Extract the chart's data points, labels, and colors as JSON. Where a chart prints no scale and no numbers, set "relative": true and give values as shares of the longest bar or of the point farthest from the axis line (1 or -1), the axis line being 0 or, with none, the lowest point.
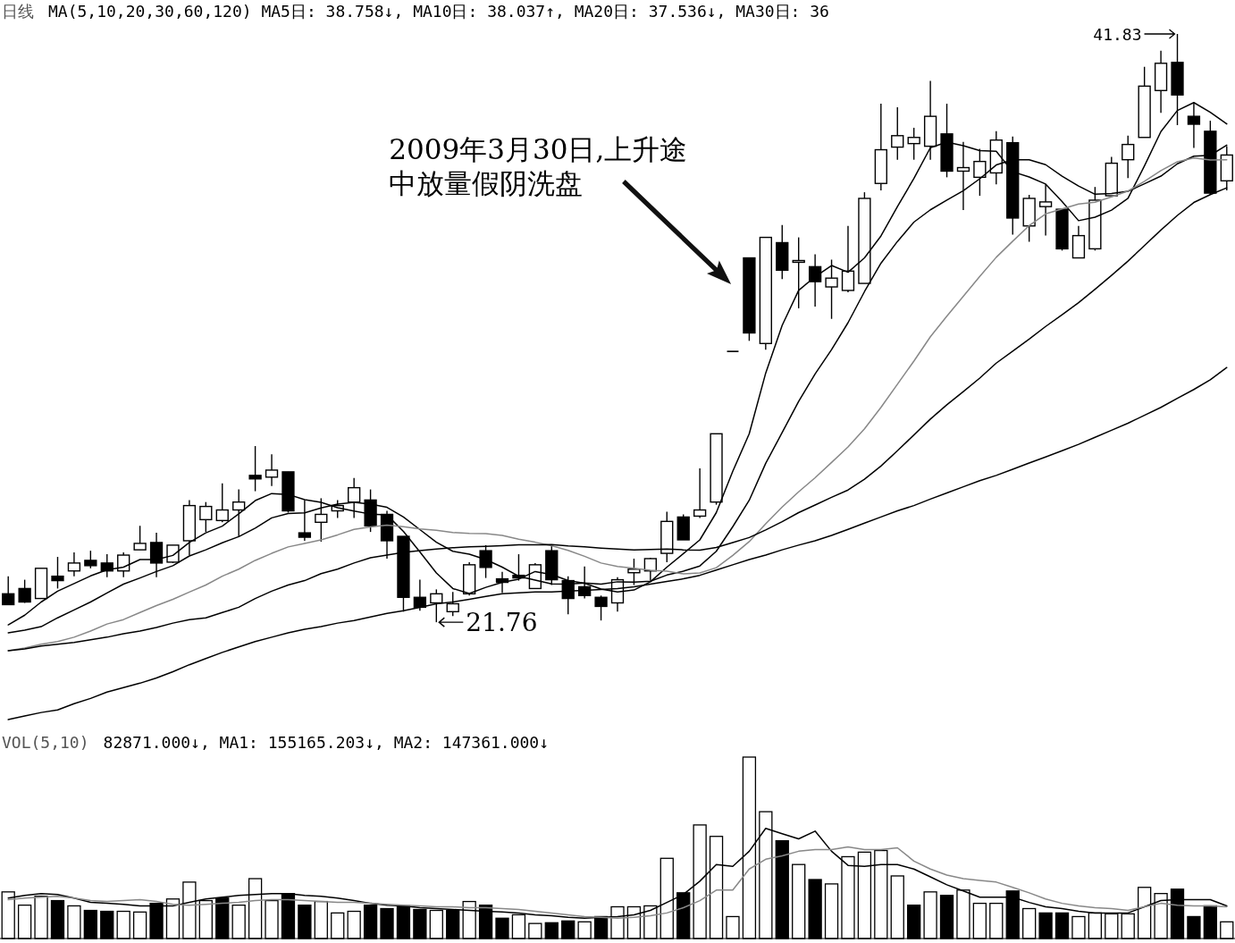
{
  "chart_data": [
    {
      "type": "candlestick",
      "title": "日线",
      "subtitle": "MA(5,10,20,30,60,120) MA5日: 38.758↓, MA10日: 38.037↑, MA20日: 37.536↓, MA30日: 36",
      "tick_labels": false,
      "categories": [
        null,
        null,
        null,
        null,
        null,
        null,
        null,
        null,
        null,
        null,
        null,
        null,
        null,
        null,
        null,
        null,
        null,
        null,
        null,
        null,
        null,
        null,
        null,
        null,
        null,
        null,
        null,
        null,
        null,
        null,
        null,
        null,
        null,
        null,
        null,
        null,
        null,
        null,
        null,
        null,
        null,
        null,
        null,
        null,
        null,
        null,
        null,
        null,
        null,
        null,
        null,
        null,
        null,
        null,
        null,
        null,
        null,
        null,
        null,
        null,
        null,
        null,
        null,
        null,
        null,
        null,
        null,
        null,
        null,
        null,
        null,
        null,
        null,
        null,
        null
      ],
      "ohlc": [
        [
          22.73,
          23.33,
          22.36,
          22.36
        ],
        [
          22.91,
          23.21,
          22.42,
          22.45
        ],
        [
          22.57,
          23.6,
          22.57,
          23.6
        ],
        [
          23.33,
          23.99,
          22.91,
          23.18
        ],
        [
          23.51,
          24.14,
          23.33,
          23.78
        ],
        [
          23.87,
          24.2,
          23.6,
          23.69
        ],
        [
          23.78,
          24.08,
          23.3,
          23.51
        ],
        [
          23.51,
          24.14,
          23.3,
          24.05
        ],
        [
          24.23,
          25.05,
          24.23,
          24.45
        ],
        [
          24.48,
          24.81,
          23.3,
          23.78
        ],
        [
          23.81,
          24.39,
          23.78,
          24.39
        ],
        [
          24.54,
          25.93,
          24.05,
          25.74
        ],
        [
          25.26,
          25.86,
          24.84,
          25.71
        ],
        [
          25.23,
          26.5,
          25.17,
          25.59
        ],
        [
          25.59,
          26.29,
          24.69,
          25.86
        ],
        [
          26.77,
          27.77,
          26.23,
          26.65
        ],
        [
          26.71,
          27.49,
          26.41,
          26.95
        ],
        [
          26.89,
          26.89,
          25.5,
          25.56
        ],
        [
          24.81,
          25.93,
          24.54,
          24.66
        ],
        [
          25.17,
          25.99,
          24.51,
          25.44
        ],
        [
          25.56,
          25.93,
          25.32,
          25.74
        ],
        [
          25.86,
          26.68,
          25.32,
          26.35
        ],
        [
          25.93,
          26.29,
          24.84,
          25.05
        ],
        [
          25.44,
          25.56,
          23.93,
          24.54
        ],
        [
          24.69,
          24.69,
          22.12,
          22.61
        ],
        [
          22.61,
          23.21,
          22.15,
          22.27
        ],
        [
          22.42,
          22.88,
          21.76,
          22.73
        ],
        [
          22.12,
          22.79,
          21.97,
          22.39
        ],
        [
          22.73,
          23.81,
          22.67,
          23.72
        ],
        [
          24.2,
          24.39,
          23.27,
          23.63
        ],
        [
          23.24,
          23.48,
          22.76,
          23.12
        ],
        [
          23.36,
          24.08,
          23.18,
          23.27
        ],
        [
          22.91,
          23.78,
          22.91,
          23.72
        ],
        [
          24.2,
          24.42,
          23.03,
          23.21
        ],
        [
          23.18,
          23.33,
          22.03,
          22.57
        ],
        [
          22.97,
          23.66,
          22.57,
          22.67
        ],
        [
          22.61,
          22.67,
          21.82,
          22.3
        ],
        [
          22.42,
          23.3,
          22.12,
          23.21
        ],
        [
          23.45,
          23.93,
          23.03,
          23.57
        ],
        [
          23.51,
          23.96,
          23.18,
          23.93
        ],
        [
          24.11,
          25.53,
          23.81,
          25.2
        ],
        [
          25.35,
          25.44,
          24.57,
          24.57
        ],
        [
          25.38,
          27.01,
          25.32,
          25.59
        ],
        [
          25.86,
          28.19,
          25.77,
          28.19
        ],
        [
          31.0,
          31.0,
          31.0,
          31.0
        ],
        [
          34.19,
          34.19,
          31.36,
          31.63
        ],
        [
          31.27,
          34.89,
          31.06,
          34.89
        ],
        [
          34.71,
          35.31,
          33.47,
          33.77
        ],
        [
          34.04,
          34.89,
          32.47,
          34.1
        ],
        [
          33.89,
          34.31,
          32.53,
          33.38
        ],
        [
          33.2,
          34.13,
          32.11,
          33.5
        ],
        [
          33.08,
          35.28,
          33.02,
          33.74
        ],
        [
          33.32,
          36.43,
          33.32,
          36.22
        ],
        [
          36.73,
          39.45,
          36.49,
          37.88
        ],
        [
          37.97,
          39.33,
          37.54,
          38.36
        ],
        [
          38.09,
          38.63,
          37.54,
          38.3
        ],
        [
          38.0,
          40.23,
          37.54,
          39.02
        ],
        [
          38.42,
          39.45,
          36.94,
          37.15
        ],
        [
          37.15,
          38.15,
          35.82,
          37.27
        ],
        [
          36.94,
          37.91,
          36.31,
          37.48
        ],
        [
          37.09,
          38.51,
          36.7,
          38.21
        ],
        [
          38.12,
          38.33,
          34.98,
          35.55
        ],
        [
          35.28,
          36.34,
          34.74,
          36.22
        ],
        [
          35.94,
          36.7,
          34.95,
          36.1
        ],
        [
          35.85,
          35.85,
          34.44,
          34.5
        ],
        [
          34.19,
          35.28,
          34.19,
          34.95
        ],
        [
          34.5,
          36.61,
          34.44,
          36.16
        ],
        [
          36.31,
          37.64,
          36.31,
          37.42
        ],
        [
          37.54,
          38.36,
          36.91,
          38.06
        ],
        [
          38.3,
          40.71,
          38.3,
          40.05
        ],
        [
          39.9,
          41.26,
          39.14,
          40.83
        ],
        [
          40.86,
          41.83,
          38.72,
          39.75
        ],
        [
          39.02,
          39.48,
          37.94,
          38.75
        ],
        [
          38.51,
          38.87,
          36.34,
          36.4
        ],
        [
          36.82,
          38.0,
          36.49,
          37.7
        ]
      ],
      "series": [
        {
          "type": "line",
          "color": "#000000",
          "values": [
            21.67,
            22.0,
            22.45,
            22.82,
            23.08,
            23.34,
            23.55,
            23.64,
            23.9,
            23.9,
            24.04,
            24.48,
            24.81,
            25.04,
            25.46,
            25.91,
            26.15,
            26.12,
            25.94,
            25.85,
            25.67,
            25.55,
            25.45,
            25.42,
            24.86,
            24.16,
            23.44,
            22.91,
            22.74,
            22.95,
            23.12,
            23.23,
            23.49,
            23.39,
            23.18,
            23.09,
            22.89,
            22.79,
            22.86,
            23.14,
            23.64,
            24.1,
            24.57,
            25.5,
            26.91,
            28.19,
            30.26,
            31.89,
            33.08,
            33.55,
            33.93,
            33.7,
            34.19,
            34.94,
            35.94,
            36.9,
            37.95,
            38.14,
            38.02,
            37.85,
            37.83,
            37.13,
            36.95,
            36.71,
            36.11,
            35.46,
            35.58,
            35.82,
            36.22,
            37.33,
            38.5,
            39.22,
            39.49,
            39.16,
            38.76
          ]
        },
        {
          "type": "line",
          "color": "#000000",
          "values": [
            21.4,
            21.49,
            21.61,
            21.91,
            22.18,
            22.45,
            22.76,
            23.06,
            23.27,
            23.49,
            23.69,
            24.02,
            24.23,
            24.47,
            24.68,
            24.97,
            25.32,
            25.47,
            25.49,
            25.66,
            25.79,
            25.85,
            25.79,
            25.68,
            25.35,
            24.92,
            24.49,
            24.18,
            24.08,
            23.9,
            23.64,
            23.33,
            23.2,
            23.07,
            23.06,
            23.1,
            23.06,
            23.14,
            23.13,
            23.16,
            23.37,
            23.5,
            23.68,
            24.18,
            25.02,
            25.92,
            27.18,
            28.23,
            29.29,
            30.23,
            31.06,
            31.98,
            33.04,
            34.01,
            34.75,
            35.41,
            35.83,
            36.16,
            36.48,
            36.89,
            37.36,
            37.54,
            37.54,
            37.37,
            36.98,
            36.64,
            36.36,
            36.39,
            36.46,
            36.72,
            36.98,
            37.4,
            37.66,
            37.69,
            38.04
          ]
        },
        {
          "type": "line",
          "color": "#888888",
          "values": [
            20.79,
            20.88,
            21.01,
            21.1,
            21.25,
            21.46,
            21.7,
            21.85,
            22.09,
            22.33,
            22.54,
            22.79,
            23.03,
            23.33,
            23.57,
            23.87,
            24.11,
            24.33,
            24.45,
            24.57,
            24.74,
            24.93,
            25.01,
            25.07,
            25.02,
            24.94,
            24.9,
            24.82,
            24.79,
            24.78,
            24.72,
            24.59,
            24.49,
            24.37,
            24.21,
            24.01,
            23.78,
            23.66,
            23.6,
            23.53,
            23.5,
            23.41,
            23.44,
            23.62,
            24.04,
            24.51,
            25.12,
            25.69,
            26.21,
            26.69,
            27.21,
            27.74,
            28.36,
            29.09,
            29.88,
            30.67,
            31.5,
            32.2,
            32.88,
            33.56,
            34.21,
            34.76,
            35.29,
            35.69,
            35.86,
            36.03,
            36.09,
            36.27,
            36.47,
            36.8,
            37.17,
            37.47,
            37.6,
            37.53,
            37.54
          ]
        },
        {
          "type": "line",
          "color": "#000000",
          "values": [
            20.79,
            20.85,
            20.95,
            21.01,
            21.07,
            21.16,
            21.25,
            21.37,
            21.46,
            21.58,
            21.73,
            21.85,
            21.91,
            22.09,
            22.27,
            22.57,
            22.82,
            23.03,
            23.18,
            23.42,
            23.57,
            23.78,
            23.96,
            24.05,
            24.14,
            24.2,
            24.26,
            24.3,
            24.33,
            24.35,
            24.37,
            24.4,
            24.4,
            24.41,
            24.36,
            24.33,
            24.29,
            24.26,
            24.23,
            24.24,
            24.26,
            24.23,
            24.22,
            24.31,
            24.48,
            24.65,
            24.91,
            25.19,
            25.5,
            25.76,
            26.02,
            26.27,
            26.64,
            27.09,
            27.61,
            28.15,
            28.69,
            29.18,
            29.63,
            30.09,
            30.6,
            31.01,
            31.42,
            31.85,
            32.25,
            32.66,
            33.12,
            33.59,
            34.08,
            34.61,
            35.14,
            35.64,
            36.08,
            36.35,
            36.58
          ]
        },
        {
          "type": "line",
          "color": "#000000",
          "values": [
            18.44,
            18.56,
            18.68,
            18.77,
            18.98,
            19.16,
            19.38,
            19.53,
            19.68,
            19.86,
            20.07,
            20.31,
            20.52,
            20.73,
            20.92,
            21.1,
            21.25,
            21.4,
            21.52,
            21.61,
            21.73,
            21.82,
            21.94,
            22.06,
            22.15,
            22.27,
            22.39,
            22.45,
            22.54,
            22.64,
            22.73,
            22.76,
            22.79,
            22.79,
            22.82,
            22.85,
            22.88,
            22.91,
            22.97,
            23.06,
            23.15,
            23.24,
            23.36,
            23.54,
            23.72,
            23.9,
            24.05,
            24.23,
            24.39,
            24.54,
            24.72,
            24.93,
            25.14,
            25.35,
            25.56,
            25.74,
            25.96,
            26.17,
            26.38,
            26.59,
            26.77,
            26.98,
            27.19,
            27.4,
            27.61,
            27.83,
            28.07,
            28.31,
            28.55,
            28.82,
            29.09,
            29.4,
            29.7,
            30.03,
            30.45
          ]
        }
      ],
      "annotations": [
        "41.83",
        "21.76",
        "2009年3月30日,上升途中放量假阴洗盘"
      ]
    },
    {
      "type": "bar",
      "title": "VOL(5,10)",
      "subtitle": "82871.000↓, MA1: 155165.203↓, MA2: 147361.000↓",
      "tick_labels": false,
      "relative": true,
      "categories": [
        null,
        null,
        null,
        null,
        null,
        null,
        null,
        null,
        null,
        null,
        null,
        null,
        null,
        null,
        null,
        null,
        null,
        null,
        null,
        null,
        null,
        null,
        null,
        null,
        null,
        null,
        null,
        null,
        null,
        null,
        null,
        null,
        null,
        null,
        null,
        null,
        null,
        null,
        null,
        null,
        null,
        null,
        null,
        null,
        null,
        null,
        null,
        null,
        null,
        null,
        null,
        null,
        null,
        null,
        null,
        null,
        null,
        null,
        null,
        null,
        null,
        null,
        null,
        null,
        null,
        null,
        null,
        null,
        null,
        null,
        null,
        null,
        null,
        null,
        null
      ],
      "values": [
        0.257,
        0.184,
        0.233,
        0.209,
        0.18,
        0.155,
        0.15,
        0.15,
        0.146,
        0.194,
        0.218,
        0.311,
        0.209,
        0.223,
        0.184,
        0.33,
        0.209,
        0.248,
        0.184,
        0.204,
        0.141,
        0.15,
        0.184,
        0.165,
        0.18,
        0.16,
        0.155,
        0.155,
        0.204,
        0.184,
        0.112,
        0.131,
        0.083,
        0.087,
        0.097,
        0.092,
        0.121,
        0.175,
        0.175,
        0.18,
        0.442,
        0.252,
        0.626,
        0.563,
        0.121,
        1,
        0.699,
        0.539,
        0.408,
        0.325,
        0.301,
        0.451,
        0.476,
        0.485,
        0.345,
        0.184,
        0.257,
        0.238,
        0.267,
        0.194,
        0.194,
        0.262,
        0.165,
        0.141,
        0.141,
        0.121,
        0.141,
        0.136,
        0.136,
        0.282,
        0.248,
        0.272,
        0.121,
        0.18,
        0.092
      ],
      "colors": [
        "#ffffff",
        "#ffffff",
        "#ffffff",
        "#000000",
        "#ffffff",
        "#000000",
        "#000000",
        "#ffffff",
        "#ffffff",
        "#000000",
        "#ffffff",
        "#ffffff",
        "#ffffff",
        "#000000",
        "#ffffff",
        "#ffffff",
        "#ffffff",
        "#000000",
        "#000000",
        "#ffffff",
        "#ffffff",
        "#ffffff",
        "#000000",
        "#000000",
        "#000000",
        "#000000",
        "#ffffff",
        "#000000",
        "#ffffff",
        "#000000",
        "#000000",
        "#ffffff",
        "#ffffff",
        "#000000",
        "#000000",
        "#ffffff",
        "#000000",
        "#ffffff",
        "#ffffff",
        "#ffffff",
        "#ffffff",
        "#000000",
        "#ffffff",
        "#ffffff",
        "#ffffff",
        "#ffffff",
        "#ffffff",
        "#000000",
        "#ffffff",
        "#000000",
        "#ffffff",
        "#ffffff",
        "#ffffff",
        "#ffffff",
        "#ffffff",
        "#000000",
        "#ffffff",
        "#000000",
        "#ffffff",
        "#ffffff",
        "#ffffff",
        "#000000",
        "#ffffff",
        "#000000",
        "#000000",
        "#ffffff",
        "#ffffff",
        "#ffffff",
        "#ffffff",
        "#ffffff",
        "#ffffff",
        "#000000",
        "#000000",
        "#000000",
        "#ffffff"
      ],
      "series": [
        {
          "type": "line",
          "color": "#000000",
          "values": [
            0.223,
            0.238,
            0.248,
            0.243,
            0.223,
            0.199,
            0.194,
            0.189,
            0.18,
            0.18,
            0.18,
            0.199,
            0.218,
            0.228,
            0.238,
            0.243,
            0.248,
            0.248,
            0.238,
            0.233,
            0.223,
            0.209,
            0.194,
            0.184,
            0.18,
            0.17,
            0.165,
            0.16,
            0.155,
            0.15,
            0.146,
            0.141,
            0.131,
            0.126,
            0.117,
            0.112,
            0.117,
            0.121,
            0.131,
            0.155,
            0.199,
            0.243,
            0.316,
            0.408,
            0.398,
            0.481,
            0.607,
            0.578,
            0.549,
            0.592,
            0.481,
            0.403,
            0.398,
            0.408,
            0.408,
            0.383,
            0.34,
            0.296,
            0.262,
            0.228,
            0.228,
            0.228,
            0.199,
            0.175,
            0.165,
            0.15,
            0.141,
            0.141,
            0.141,
            0.175,
            0.209,
            0.214,
            0.214,
            0.214,
            0.18
          ]
        },
        {
          "type": "line",
          "color": "#888888",
          "values": [
            0.214,
            0.223,
            0.228,
            0.233,
            0.223,
            0.209,
            0.204,
            0.209,
            0.214,
            0.204,
            0.189,
            0.184,
            0.189,
            0.194,
            0.199,
            0.209,
            0.214,
            0.214,
            0.209,
            0.204,
            0.199,
            0.199,
            0.194,
            0.189,
            0.184,
            0.18,
            0.175,
            0.175,
            0.17,
            0.17,
            0.165,
            0.16,
            0.15,
            0.141,
            0.131,
            0.121,
            0.117,
            0.112,
            0.117,
            0.126,
            0.141,
            0.17,
            0.209,
            0.267,
            0.267,
            0.383,
            0.437,
            0.456,
            0.481,
            0.49,
            0.49,
            0.505,
            0.49,
            0.49,
            0.5,
            0.427,
            0.383,
            0.35,
            0.33,
            0.32,
            0.311,
            0.282,
            0.252,
            0.218,
            0.194,
            0.18,
            0.17,
            0.165,
            0.155,
            0.175,
            0.194,
            0.184,
            0.18,
            0.18,
            0.175
          ]
        }
      ]
    }
  ]
}
